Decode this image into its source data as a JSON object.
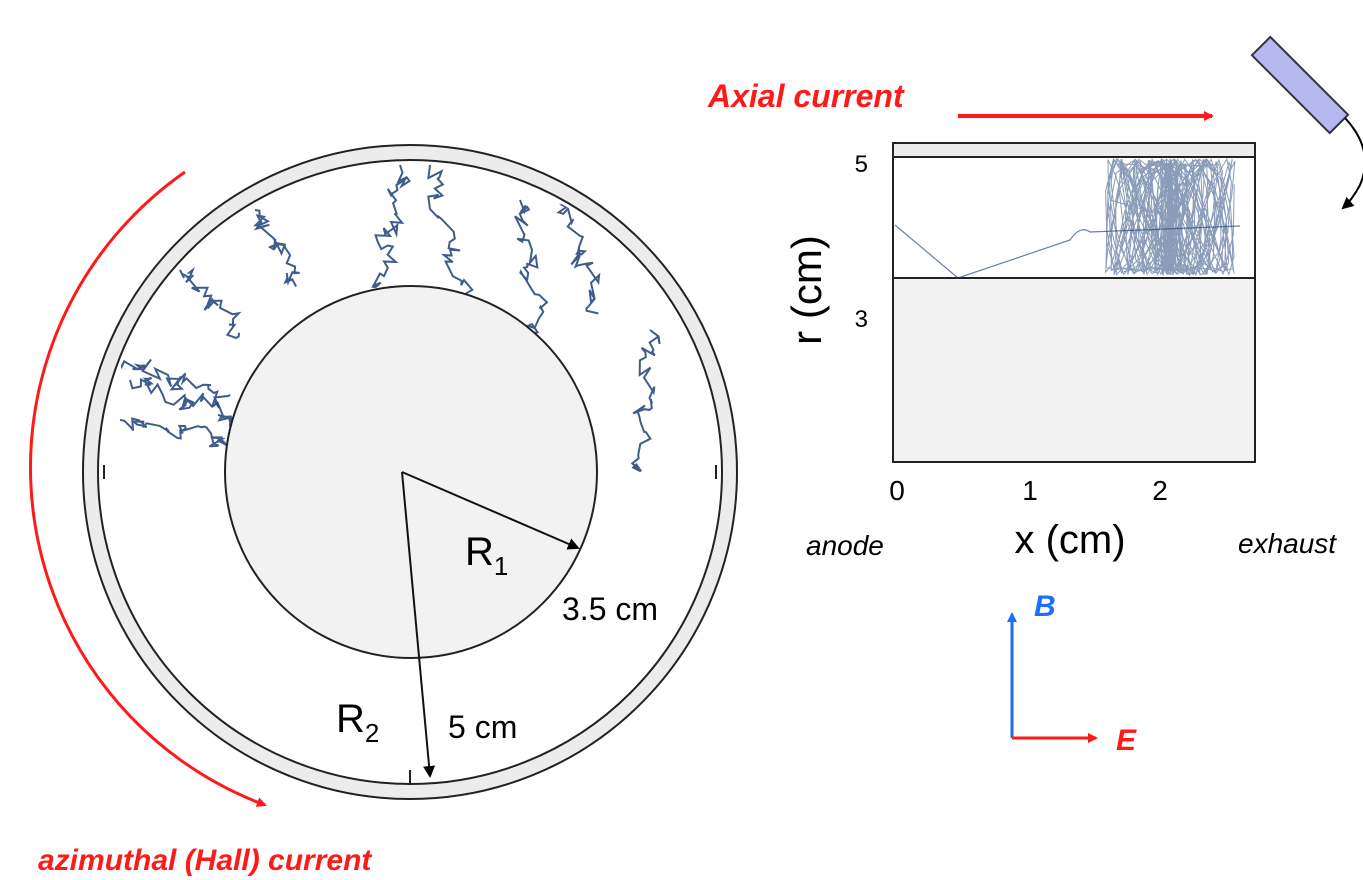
{
  "left_panel": {
    "r1_label": {
      "symbol": "R",
      "subscript": "1"
    },
    "r1_value": "3.5 cm",
    "r2_label": {
      "symbol": "R",
      "subscript": "2"
    },
    "r2_value": "5 cm",
    "current_label": "azimuthal (Hall) current"
  },
  "right_panel": {
    "current_label": "Axial current",
    "y_axis_label": "r (cm)",
    "y_ticks": [
      "5",
      "3"
    ],
    "x_ticks": [
      "0",
      "1",
      "2"
    ],
    "x_axis_label": "x (cm)",
    "left_end_label": "anode",
    "right_end_label": "exhaust",
    "field_labels": {
      "b": "B",
      "e": "E"
    }
  }
}
